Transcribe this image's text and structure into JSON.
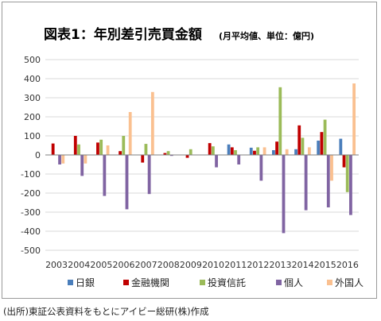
{
  "source_note": "(出所)東証公表資料をもとにアイビー総研(株)作成",
  "chart_data": {
    "type": "bar",
    "title": "図表1：年別差引売買金額",
    "subtitle": "(月平均値、単位：億円)",
    "xlabel": "",
    "ylabel": "",
    "ylim": [
      -500,
      500
    ],
    "yticks": [
      500,
      400,
      300,
      200,
      100,
      0,
      -100,
      -200,
      -300,
      -400,
      -500
    ],
    "grid": true,
    "legend_position": "bottom",
    "categories": [
      "2003",
      "2004",
      "2005",
      "2006",
      "2007",
      "2008",
      "2009",
      "2010",
      "2011",
      "2012",
      "2013",
      "2014",
      "2015",
      "2016"
    ],
    "series": [
      {
        "name": "日銀",
        "color": "#4a7ebb",
        "values": [
          0,
          0,
          0,
          0,
          0,
          0,
          0,
          0,
          55,
          38,
          25,
          30,
          75,
          85
        ]
      },
      {
        "name": "金融機関",
        "color": "#c00000",
        "values": [
          60,
          100,
          65,
          20,
          -40,
          10,
          -15,
          62,
          40,
          22,
          70,
          155,
          120,
          -65
        ]
      },
      {
        "name": "投資信託",
        "color": "#9bbb59",
        "values": [
          0,
          55,
          80,
          100,
          58,
          20,
          30,
          45,
          25,
          40,
          355,
          90,
          185,
          -195
        ]
      },
      {
        "name": "個人",
        "color": "#8064a2",
        "values": [
          -50,
          -110,
          -215,
          -285,
          -205,
          -5,
          0,
          -65,
          -50,
          -135,
          -410,
          -290,
          -275,
          -315
        ]
      },
      {
        "name": "外国人",
        "color": "#fac090",
        "values": [
          -45,
          -45,
          50,
          225,
          330,
          0,
          0,
          0,
          0,
          40,
          30,
          40,
          -135,
          375
        ]
      }
    ]
  }
}
